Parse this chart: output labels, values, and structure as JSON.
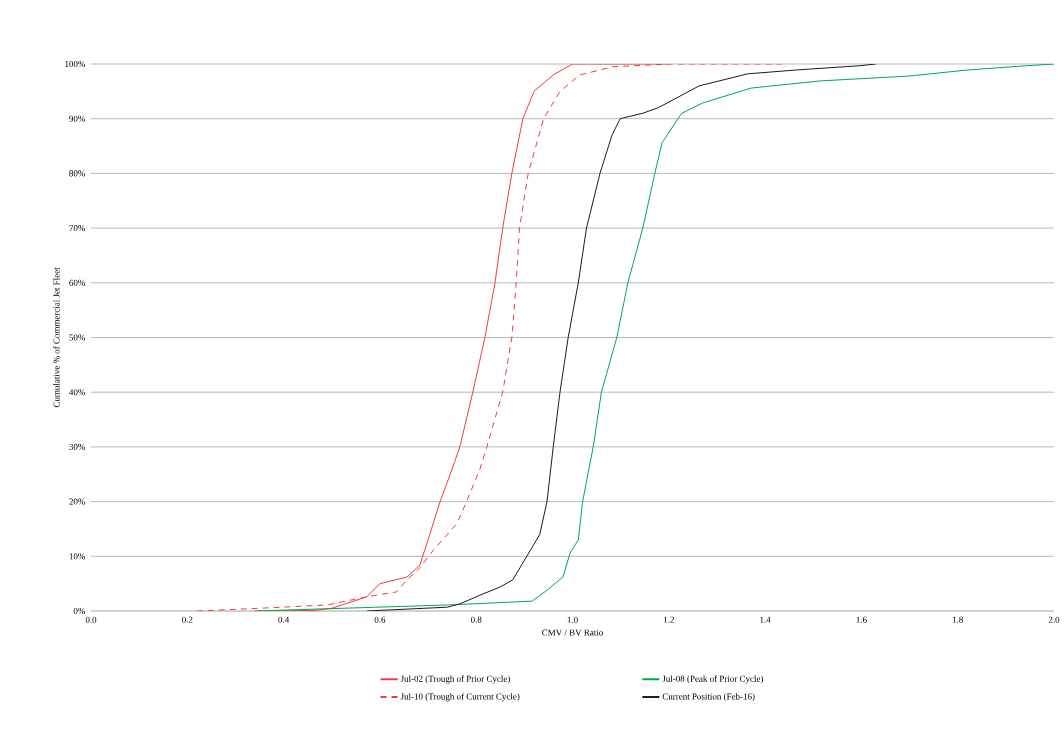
{
  "chart_data": {
    "type": "line",
    "xlabel": "CMV / BV Ratio",
    "ylabel": "Cumulative % of Commercial Jet Fleet",
    "xlim": [
      0,
      2
    ],
    "ylim": [
      0,
      100
    ],
    "xticks": [
      {
        "value": 0,
        "label": "0.0"
      },
      {
        "value": 0.2,
        "label": "0.2"
      },
      {
        "value": 0.4,
        "label": "0.4"
      },
      {
        "value": 0.6,
        "label": "0.6"
      },
      {
        "value": 0.8,
        "label": "0.8"
      },
      {
        "value": 1,
        "label": "1.0"
      },
      {
        "value": 1.2,
        "label": "1.2"
      },
      {
        "value": 1.4,
        "label": "1.4"
      },
      {
        "value": 1.6,
        "label": "1.6"
      },
      {
        "value": 1.8,
        "label": "1.8"
      },
      {
        "value": 2,
        "label": "2.0"
      }
    ],
    "yticks": [
      {
        "value": 0,
        "label": "0%"
      },
      {
        "value": 10,
        "label": "10%"
      },
      {
        "value": 20,
        "label": "20%"
      },
      {
        "value": 30,
        "label": "30%"
      },
      {
        "value": 40,
        "label": "40%"
      },
      {
        "value": 50,
        "label": "50%"
      },
      {
        "value": 60,
        "label": "60%"
      },
      {
        "value": 70,
        "label": "70%"
      },
      {
        "value": 80,
        "label": "80%"
      },
      {
        "value": 90,
        "label": "90%"
      },
      {
        "value": 100,
        "label": "100%"
      }
    ],
    "grid": "y",
    "legend": "bottom",
    "marker": "none",
    "series": [
      {
        "name": "Jul-02 (Trough of Prior Cycle)",
        "color": "#f03c3c",
        "line_style": "solid",
        "x": [
          0.34,
          0.465,
          0.5,
          0.573,
          0.6,
          0.656,
          0.683,
          0.7,
          0.725,
          0.746,
          0.766,
          0.793,
          0.818,
          0.839,
          0.855,
          0.874,
          0.897,
          0.92,
          0.96,
          1.0,
          1.2
        ],
        "values": [
          0,
          0.1,
          0.5,
          2.6,
          5,
          6.2,
          8.4,
          13,
          20,
          25,
          30,
          40,
          50,
          60,
          70,
          80,
          90,
          95,
          98,
          100,
          100
        ]
      },
      {
        "name": "Jul-08 (Peak of Prior Cycle)",
        "color": "#00a651",
        "line_style": "solid",
        "x": [
          0.34,
          0.74,
          0.916,
          0.947,
          0.98,
          0.995,
          1.012,
          1.021,
          1.043,
          1.06,
          1.092,
          1.115,
          1.146,
          1.171,
          1.186,
          1.219,
          1.227,
          1.271,
          1.371,
          1.514,
          1.7,
          1.82,
          1.93,
          2.0
        ],
        "values": [
          0,
          1.1,
          1.8,
          3.8,
          6.2,
          10.6,
          13,
          20,
          30,
          40,
          50,
          60,
          70,
          80,
          85.6,
          90,
          91,
          92.9,
          95.6,
          96.9,
          97.8,
          98.9,
          99.6,
          100
        ]
      },
      {
        "name": "Jul-10 (Trough of Current Cycle)",
        "color": "#f03c3c",
        "line_style": "dashed",
        "x": [
          0.22,
          0.35,
          0.49,
          0.573,
          0.635,
          0.656,
          0.683,
          0.71,
          0.76,
          0.78,
          0.808,
          0.822,
          0.855,
          0.874,
          0.883,
          0.89,
          0.908,
          0.94,
          0.974,
          1.015,
          1.084,
          1.2,
          1.435
        ],
        "values": [
          0,
          0.5,
          1.1,
          2.6,
          3.5,
          5.7,
          7.9,
          11,
          16,
          20,
          26,
          30,
          40,
          50,
          60,
          70,
          80,
          90,
          95,
          98,
          99.5,
          100,
          100
        ]
      },
      {
        "name": "Current Position (Feb-16)",
        "color": "#1a1a1a",
        "line_style": "solid",
        "x": [
          0.573,
          0.74,
          0.766,
          0.808,
          0.85,
          0.876,
          0.905,
          0.932,
          0.947,
          0.96,
          0.974,
          0.991,
          1.012,
          1.029,
          1.057,
          1.082,
          1.099,
          1.146,
          1.178,
          1.263,
          1.364,
          1.464,
          1.599,
          1.63
        ],
        "values": [
          0,
          0.7,
          1.3,
          2.9,
          4.4,
          5.7,
          10,
          14,
          20,
          30,
          40,
          50,
          60,
          70,
          80,
          87,
          90,
          91,
          92,
          96,
          98.2,
          98.9,
          99.7,
          100
        ]
      }
    ]
  }
}
